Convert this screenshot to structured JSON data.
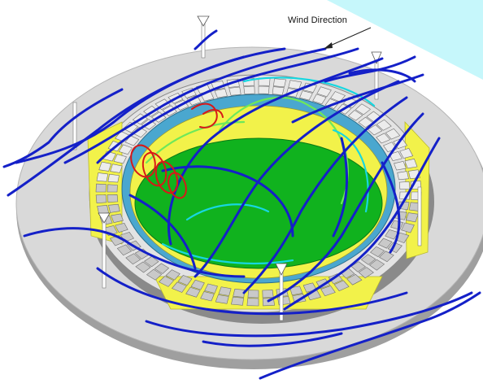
{
  "annotation": {
    "wind_label": "Wind Direction"
  },
  "colors": {
    "sky": "#c6f7fb",
    "platform_top": "#d9d9d9",
    "platform_side": "#9f9f9f",
    "stand": "#e3e3e3",
    "stand_dark": "#8a8a8a",
    "roof_inner": "#4aa7cf",
    "structure_yellow": "#f2f24a",
    "pitch": "#10b21e",
    "streamline_main": "#1420c8",
    "streamline_mid": "#17d7e0",
    "streamline_light": "#6ee85a",
    "vortex": "#d81818"
  }
}
